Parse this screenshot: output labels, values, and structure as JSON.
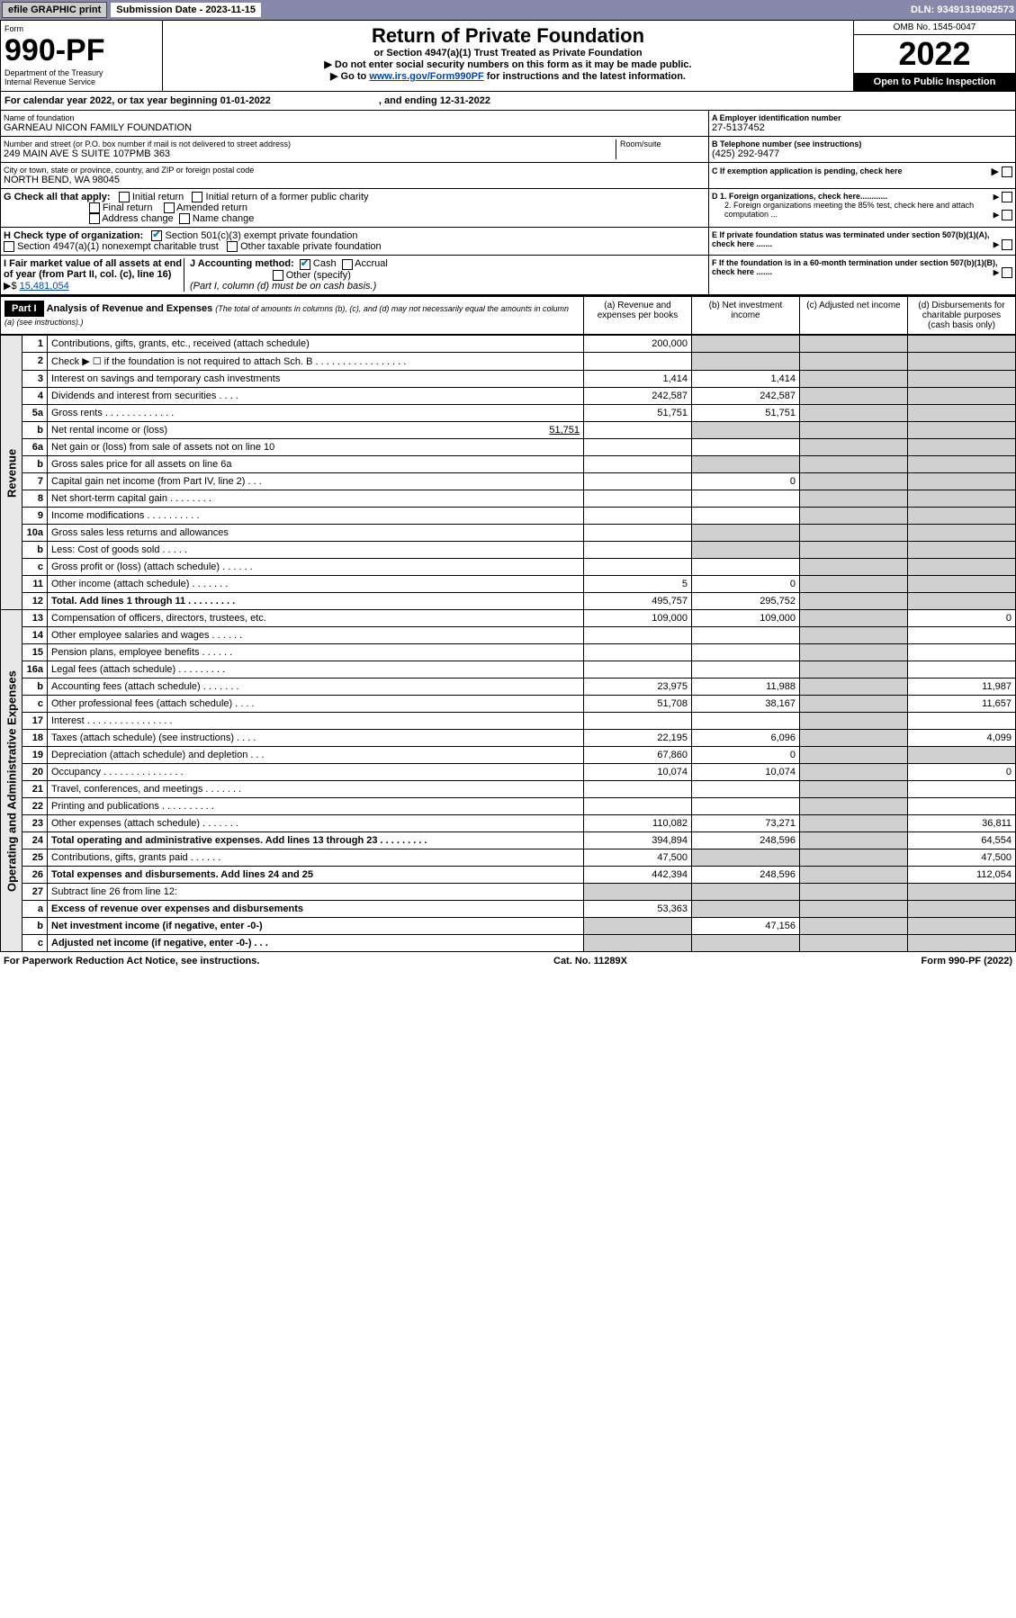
{
  "topbar": {
    "efile": "efile GRAPHIC print",
    "sub_label": "Submission Date - 2023-11-15",
    "dln": "DLN: 93491319092573"
  },
  "header": {
    "form_word": "Form",
    "form_no": "990-PF",
    "dept": "Department of the Treasury",
    "irs": "Internal Revenue Service",
    "title": "Return of Private Foundation",
    "subtitle": "or Section 4947(a)(1) Trust Treated as Private Foundation",
    "note1": "▶ Do not enter social security numbers on this form as it may be made public.",
    "note2_pre": "▶ Go to ",
    "note2_link": "www.irs.gov/Form990PF",
    "note2_post": " for instructions and the latest information.",
    "omb": "OMB No. 1545-0047",
    "year": "2022",
    "open": "Open to Public Inspection"
  },
  "cal": {
    "text": "For calendar year 2022, or tax year beginning 01-01-2022",
    "end": ", and ending 12-31-2022"
  },
  "info": {
    "name_lbl": "Name of foundation",
    "name": "GARNEAU NICON FAMILY FOUNDATION",
    "addr_lbl": "Number and street (or P.O. box number if mail is not delivered to street address)",
    "addr": "249 MAIN AVE S SUITE 107PMB 363",
    "room_lbl": "Room/suite",
    "city_lbl": "City or town, state or province, country, and ZIP or foreign postal code",
    "city": "NORTH BEND, WA  98045",
    "ein_lbl": "A Employer identification number",
    "ein": "27-5137452",
    "phone_lbl": "B Telephone number (see instructions)",
    "phone": "(425) 292-9477",
    "c_lbl": "C If exemption application is pending, check here",
    "g_lbl": "G Check all that apply:",
    "g_initial": "Initial return",
    "g_initial_pub": "Initial return of a former public charity",
    "g_final": "Final return",
    "g_amended": "Amended return",
    "g_addr": "Address change",
    "g_name": "Name change",
    "d1": "D 1. Foreign organizations, check here............",
    "d2": "2. Foreign organizations meeting the 85% test, check here and attach computation ...",
    "h_lbl": "H Check type of organization:",
    "h_501": "Section 501(c)(3) exempt private foundation",
    "h_4947": "Section 4947(a)(1) nonexempt charitable trust",
    "h_other": "Other taxable private foundation",
    "e_lbl": "E  If private foundation status was terminated under section 507(b)(1)(A), check here .......",
    "i_lbl": "I Fair market value of all assets at end of year (from Part II, col. (c), line 16)",
    "i_val": "15,481,054",
    "j_lbl": "J Accounting method:",
    "j_cash": "Cash",
    "j_accrual": "Accrual",
    "j_other": "Other (specify)",
    "j_note": "(Part I, column (d) must be on cash basis.)",
    "f_lbl": "F  If the foundation is in a 60-month termination under section 507(b)(1)(B), check here ......."
  },
  "part1": {
    "label": "Part I",
    "title": "Analysis of Revenue and Expenses",
    "title_note": " (The total of amounts in columns (b), (c), and (d) may not necessarily equal the amounts in column (a) (see instructions).)",
    "col_a": "(a) Revenue and expenses per books",
    "col_b": "(b) Net investment income",
    "col_c": "(c) Adjusted net income",
    "col_d": "(d) Disbursements for charitable purposes (cash basis only)"
  },
  "sides": {
    "rev": "Revenue",
    "exp": "Operating and Administrative Expenses"
  },
  "rows": {
    "1": {
      "t": "Contributions, gifts, grants, etc., received (attach schedule)",
      "a": "200,000"
    },
    "2": {
      "t": "Check ▶ ☐ if the foundation is not required to attach Sch. B  . . . . . . . . . . . . . . . . ."
    },
    "3": {
      "t": "Interest on savings and temporary cash investments",
      "a": "1,414",
      "b": "1,414"
    },
    "4": {
      "t": "Dividends and interest from securities  . . . .",
      "a": "242,587",
      "b": "242,587"
    },
    "5a": {
      "t": "Gross rents  . . . . . . . . . . . . .",
      "a": "51,751",
      "b": "51,751"
    },
    "5b": {
      "t": "Net rental income or (loss)",
      "u": "51,751"
    },
    "6a": {
      "t": "Net gain or (loss) from sale of assets not on line 10"
    },
    "6b": {
      "t": "Gross sales price for all assets on line 6a"
    },
    "7": {
      "t": "Capital gain net income (from Part IV, line 2)  . . .",
      "b": "0"
    },
    "8": {
      "t": "Net short-term capital gain  . . . . . . . ."
    },
    "9": {
      "t": "Income modifications  . . . . . . . . . ."
    },
    "10a": {
      "t": "Gross sales less returns and allowances"
    },
    "10b": {
      "t": "Less: Cost of goods sold  . . . . ."
    },
    "10c": {
      "t": "Gross profit or (loss) (attach schedule)  . . . . . ."
    },
    "11": {
      "t": "Other income (attach schedule)  . . . . . . .",
      "a": "5",
      "b": "0"
    },
    "12": {
      "t": "Total. Add lines 1 through 11  . . . . . . . . .",
      "a": "495,757",
      "b": "295,752",
      "bold": true
    },
    "13": {
      "t": "Compensation of officers, directors, trustees, etc.",
      "a": "109,000",
      "b": "109,000",
      "d": "0"
    },
    "14": {
      "t": "Other employee salaries and wages  . . . . . ."
    },
    "15": {
      "t": "Pension plans, employee benefits  . . . . . ."
    },
    "16a": {
      "t": "Legal fees (attach schedule) . . . . . . . . ."
    },
    "16b": {
      "t": "Accounting fees (attach schedule) . . . . . . .",
      "a": "23,975",
      "b": "11,988",
      "d": "11,987"
    },
    "16c": {
      "t": "Other professional fees (attach schedule)  . . . .",
      "a": "51,708",
      "b": "38,167",
      "d": "11,657"
    },
    "17": {
      "t": "Interest . . . . . . . . . . . . . . . ."
    },
    "18": {
      "t": "Taxes (attach schedule) (see instructions)  . . . .",
      "a": "22,195",
      "b": "6,096",
      "d": "4,099"
    },
    "19": {
      "t": "Depreciation (attach schedule) and depletion  . . .",
      "a": "67,860",
      "b": "0"
    },
    "20": {
      "t": "Occupancy . . . . . . . . . . . . . . .",
      "a": "10,074",
      "b": "10,074",
      "d": "0"
    },
    "21": {
      "t": "Travel, conferences, and meetings . . . . . . ."
    },
    "22": {
      "t": "Printing and publications . . . . . . . . . ."
    },
    "23": {
      "t": "Other expenses (attach schedule) . . . . . . .",
      "a": "110,082",
      "b": "73,271",
      "d": "36,811"
    },
    "24": {
      "t": "Total operating and administrative expenses. Add lines 13 through 23  . . . . . . . . .",
      "a": "394,894",
      "b": "248,596",
      "d": "64,554",
      "bold": true
    },
    "25": {
      "t": "Contributions, gifts, grants paid  . . . . . .",
      "a": "47,500",
      "d": "47,500"
    },
    "26": {
      "t": "Total expenses and disbursements. Add lines 24 and 25",
      "a": "442,394",
      "b": "248,596",
      "d": "112,054",
      "bold": true
    },
    "27": {
      "t": "Subtract line 26 from line 12:"
    },
    "27a": {
      "t": "Excess of revenue over expenses and disbursements",
      "a": "53,363",
      "bold": true
    },
    "27b": {
      "t": "Net investment income (if negative, enter -0-)",
      "b": "47,156",
      "bold": true
    },
    "27c": {
      "t": "Adjusted net income (if negative, enter -0-)  . . .",
      "bold": true
    }
  },
  "footer": {
    "left": "For Paperwork Reduction Act Notice, see instructions.",
    "mid": "Cat. No. 11289X",
    "right": "Form 990-PF (2022)"
  }
}
